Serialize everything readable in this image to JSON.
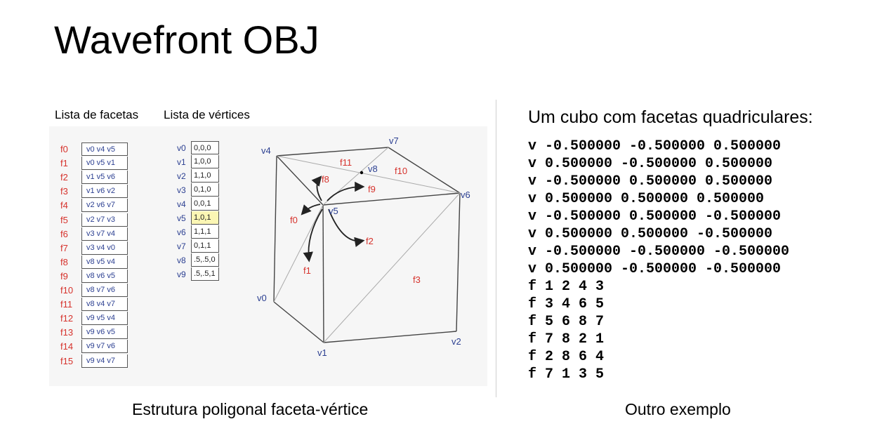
{
  "title": "Wavefront OBJ",
  "figure": {
    "facets_header": "Lista de facetas",
    "vertices_header": "Lista de vértices",
    "facets": [
      {
        "label": "f0",
        "verts": "v0 v4 v5"
      },
      {
        "label": "f1",
        "verts": "v0 v5 v1"
      },
      {
        "label": "f2",
        "verts": "v1 v5 v6"
      },
      {
        "label": "f3",
        "verts": "v1 v6 v2"
      },
      {
        "label": "f4",
        "verts": "v2 v6 v7"
      },
      {
        "label": "f5",
        "verts": "v2 v7 v3"
      },
      {
        "label": "f6",
        "verts": "v3 v7 v4"
      },
      {
        "label": "f7",
        "verts": "v3 v4 v0"
      },
      {
        "label": "f8",
        "verts": "v8 v5 v4"
      },
      {
        "label": "f9",
        "verts": "v8 v6 v5"
      },
      {
        "label": "f10",
        "verts": "v8 v7 v6"
      },
      {
        "label": "f11",
        "verts": "v8 v4 v7"
      },
      {
        "label": "f12",
        "verts": "v9 v5 v4"
      },
      {
        "label": "f13",
        "verts": "v9 v6 v5"
      },
      {
        "label": "f14",
        "verts": "v9 v7 v6"
      },
      {
        "label": "f15",
        "verts": "v9 v4 v7"
      }
    ],
    "vertices": [
      {
        "label": "v0",
        "coords": "0,0,0"
      },
      {
        "label": "v1",
        "coords": "1,0,0"
      },
      {
        "label": "v2",
        "coords": "1,1,0"
      },
      {
        "label": "v3",
        "coords": "0,1,0"
      },
      {
        "label": "v4",
        "coords": "0,0,1"
      },
      {
        "label": "v5",
        "coords": "1,0,1"
      },
      {
        "label": "v6",
        "coords": "1,1,1"
      },
      {
        "label": "v7",
        "coords": "0,1,1"
      },
      {
        "label": "v8",
        "coords": ".5,.5,0"
      },
      {
        "label": "v9",
        "coords": ".5,.5,1"
      }
    ],
    "highlighted_vertex": "v5",
    "cube_labels": {
      "v4": "v4",
      "v7": "v7",
      "v8": "v8",
      "v6": "v6",
      "v5": "v5",
      "v0": "v0",
      "v1": "v1",
      "v2": "v2",
      "f11": "f11",
      "f10": "f10",
      "f8": "f8",
      "f9": "f9",
      "f0": "f0",
      "f2": "f2",
      "f1": "f1",
      "f3": "f3"
    },
    "colors": {
      "facet_label": "#d6322c",
      "vertex_label": "#2b3f91",
      "highlight": "#fbf6b4"
    }
  },
  "right_title": "Um cubo com facetas quadriculares:",
  "code_lines": [
    "v -0.500000 -0.500000 0.500000",
    "v 0.500000 -0.500000 0.500000",
    "v -0.500000 0.500000 0.500000",
    "v 0.500000 0.500000 0.500000",
    "v -0.500000 0.500000 -0.500000",
    "v 0.500000 0.500000 -0.500000",
    "v -0.500000 -0.500000 -0.500000",
    "v 0.500000 -0.500000 -0.500000",
    "f 1 2 4 3",
    "f 3 4 6 5",
    "f 5 6 8 7",
    "f 7 8 2 1",
    "f 2 8 6 4",
    "f 7 1 3 5"
  ],
  "caption_left": "Estrutura poligonal faceta-vértice",
  "caption_right": "Outro exemplo"
}
